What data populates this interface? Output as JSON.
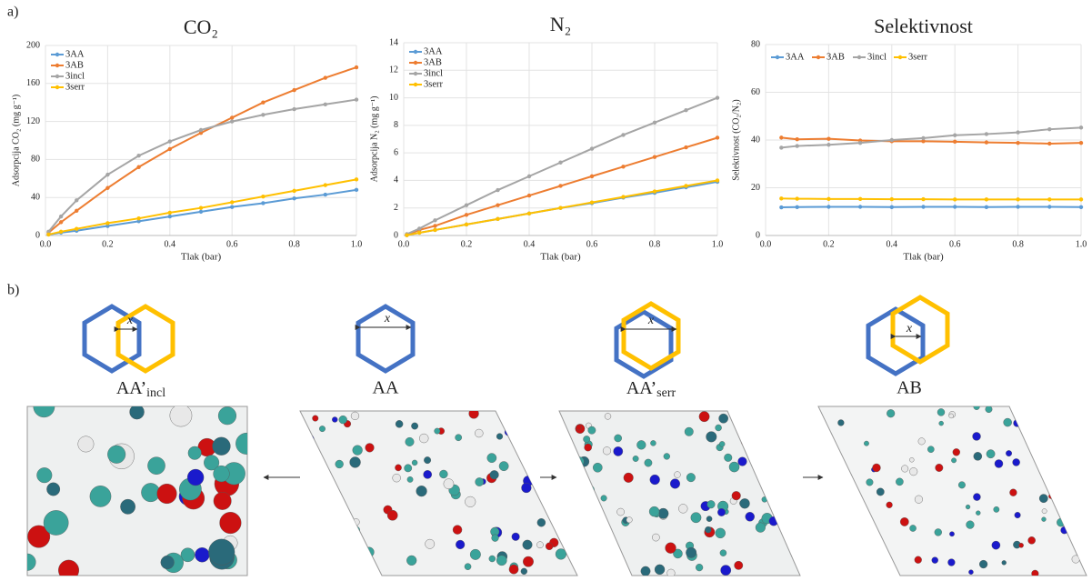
{
  "panel_a_label": "a)",
  "chart_data": [
    {
      "type": "line",
      "title": "CO₂",
      "x_label": "Tlak (bar)",
      "y_label": "Adsorpcija CO₂ (mg g⁻¹)",
      "x": [
        0.01,
        0.05,
        0.1,
        0.2,
        0.3,
        0.4,
        0.5,
        0.6,
        0.7,
        0.8,
        0.9,
        1.0
      ],
      "series": [
        {
          "name": "3AA",
          "color": "#5b9bd5",
          "values": [
            1,
            3,
            5,
            10,
            15,
            20,
            25,
            30,
            34,
            39,
            43,
            48
          ]
        },
        {
          "name": "3AB",
          "color": "#ed7d31",
          "values": [
            3,
            14,
            26,
            50,
            72,
            91,
            108,
            124,
            140,
            153,
            166,
            177
          ]
        },
        {
          "name": "3incl",
          "color": "#a5a5a5",
          "values": [
            4,
            20,
            37,
            64,
            84,
            99,
            111,
            120,
            127,
            133,
            138,
            143
          ]
        },
        {
          "name": "3serr",
          "color": "#ffc000",
          "values": [
            1,
            4,
            7,
            13,
            18,
            24,
            29,
            35,
            41,
            47,
            53,
            59
          ]
        }
      ],
      "xlim": [
        0,
        1
      ],
      "xticks": [
        {
          "value": 0,
          "label": "0.0"
        },
        0.2,
        0.4,
        0.6,
        0.8,
        {
          "value": 1,
          "label": "1.0"
        }
      ],
      "ylim": [
        0,
        200
      ],
      "yticks": [
        0,
        40,
        80,
        120,
        160,
        200
      ],
      "grid": true,
      "legend": "top-left"
    },
    {
      "type": "line",
      "title": "N₂",
      "x_label": "Tlak (bar)",
      "y_label": "Adsorpcija N₂ (mg g⁻¹)",
      "x": [
        0.01,
        0.05,
        0.1,
        0.2,
        0.3,
        0.4,
        0.5,
        0.6,
        0.7,
        0.8,
        0.9,
        1.0
      ],
      "series": [
        {
          "name": "3AA",
          "color": "#5b9bd5",
          "values": [
            0.02,
            0.2,
            0.4,
            0.8,
            1.2,
            1.6,
            2.0,
            2.35,
            2.75,
            3.1,
            3.5,
            3.9
          ]
        },
        {
          "name": "3AB",
          "color": "#ed7d31",
          "values": [
            0.05,
            0.4,
            0.7,
            1.5,
            2.2,
            2.9,
            3.6,
            4.3,
            5.0,
            5.7,
            6.4,
            7.1
          ]
        },
        {
          "name": "3incl",
          "color": "#a5a5a5",
          "values": [
            0.1,
            0.5,
            1.1,
            2.2,
            3.3,
            4.3,
            5.3,
            6.3,
            7.3,
            8.2,
            9.1,
            10.0
          ]
        },
        {
          "name": "3serr",
          "color": "#ffc000",
          "values": [
            0.02,
            0.2,
            0.4,
            0.8,
            1.2,
            1.6,
            2.0,
            2.4,
            2.8,
            3.2,
            3.6,
            4.0
          ]
        }
      ],
      "xlim": [
        0,
        1
      ],
      "xticks": [
        {
          "value": 0,
          "label": "0.0"
        },
        0.2,
        0.4,
        0.6,
        0.8,
        {
          "value": 1,
          "label": "1.0"
        }
      ],
      "ylim": [
        0,
        14
      ],
      "yticks": [
        0,
        2,
        4,
        6,
        8,
        10,
        12,
        14
      ],
      "grid": true,
      "legend": "top-left"
    },
    {
      "type": "line",
      "title": "Selektivnost",
      "x_label": "Tlak (bar)",
      "y_label": "Selektivnost (CO₂/N₂)",
      "x": [
        0.05,
        0.1,
        0.2,
        0.3,
        0.4,
        0.5,
        0.6,
        0.7,
        0.8,
        0.9,
        1.0
      ],
      "series": [
        {
          "name": "3AA",
          "color": "#5b9bd5",
          "values": [
            11.8,
            11.9,
            12,
            12,
            11.9,
            12,
            12,
            11.9,
            12,
            12,
            11.9
          ]
        },
        {
          "name": "3AB",
          "color": "#ed7d31",
          "values": [
            41,
            40.3,
            40.5,
            39.8,
            39.5,
            39.5,
            39.3,
            39,
            38.8,
            38.5,
            38.8
          ]
        },
        {
          "name": "3incl",
          "color": "#a5a5a5",
          "values": [
            36.8,
            37.5,
            38,
            38.8,
            40,
            40.8,
            42,
            42.5,
            43.2,
            44.5,
            45.2
          ]
        },
        {
          "name": "3serr",
          "color": "#ffc000",
          "values": [
            15.5,
            15.4,
            15.3,
            15.3,
            15.2,
            15.2,
            15.1,
            15.1,
            15.1,
            15.1,
            15.1
          ]
        }
      ],
      "xlim": [
        0,
        1
      ],
      "xticks": [
        {
          "value": 0,
          "label": "0.0"
        },
        0.2,
        0.4,
        0.6,
        0.8,
        {
          "value": 1,
          "label": "1.0"
        }
      ],
      "ylim": [
        0,
        80
      ],
      "yticks": [
        0,
        20,
        40,
        60,
        80
      ],
      "grid": true,
      "legend": "top"
    }
  ],
  "panel_b": {
    "label": "b)",
    "structures": [
      {
        "name": "AA’",
        "sub": "incl",
        "x": "x"
      },
      {
        "name": "AA",
        "x": "x"
      },
      {
        "name": "AA’",
        "sub": "serr",
        "x": "x"
      },
      {
        "name": "AB",
        "x": "x"
      }
    ]
  }
}
